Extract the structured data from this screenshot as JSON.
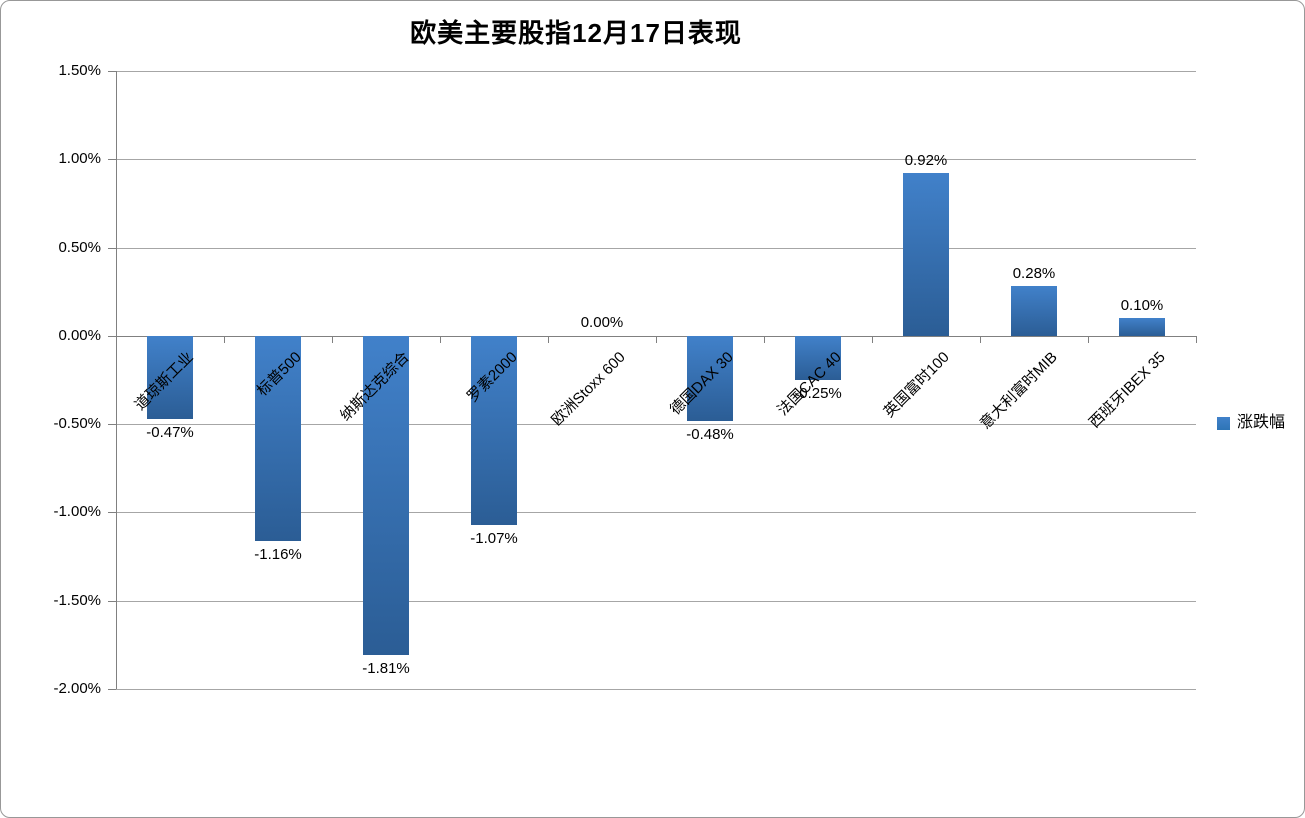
{
  "chart": {
    "background": "#FFFFFF",
    "border_color": "#989898",
    "legend": {
      "label": "涨跌幅",
      "color": "#2E75B6"
    }
  },
  "chart_data": {
    "type": "bar",
    "title": "欧美主要股指12月17日表现",
    "categories": [
      "道琼斯工业",
      "标普500",
      "纳斯达克综合",
      "罗素2000",
      "欧洲Stoxx 600",
      "德国DAX 30",
      "法国CAC 40",
      "英国富时100",
      "意大利富时MIB",
      "西班牙IBEX 35"
    ],
    "series": [
      {
        "name": "涨跌幅",
        "values": [
          -0.47,
          -1.16,
          -1.81,
          -1.07,
          0.0,
          -0.48,
          -0.25,
          0.92,
          0.28,
          0.1
        ]
      }
    ],
    "data_labels": [
      "-0.47%",
      "-1.16%",
      "-1.81%",
      "-1.07%",
      "0.00%",
      "-0.48%",
      "-0.25%",
      "0.92%",
      "0.28%",
      "0.10%"
    ],
    "yticks": [
      "1.50%",
      "1.00%",
      "0.50%",
      "0.00%",
      "-0.50%",
      "-1.00%",
      "-1.50%",
      "-2.00%"
    ],
    "ylim": [
      -2.0,
      1.5
    ],
    "ytick_step": 0.5,
    "grid": true,
    "legend_position": "right",
    "xlabel": "",
    "ylabel": "",
    "bar_gradient_top": "#4181CA",
    "bar_gradient_bottom": "#2B5D95",
    "gridline_color": "#A6A6A6",
    "axis_color": "#808080"
  }
}
